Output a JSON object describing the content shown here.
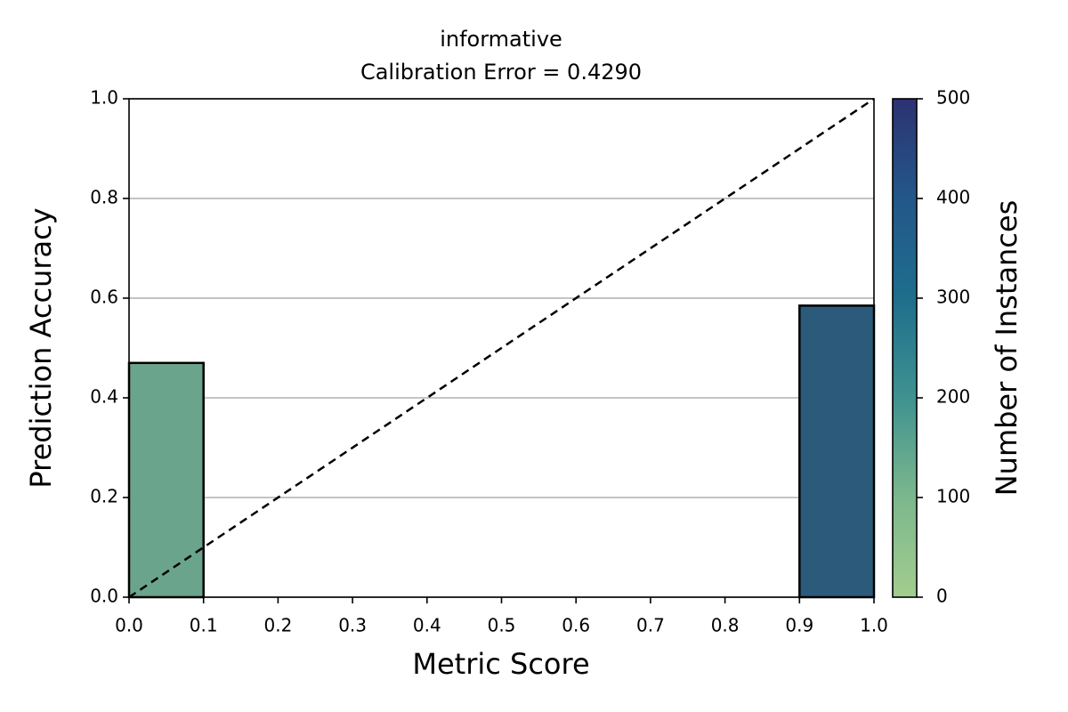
{
  "chart_data": {
    "type": "histogram",
    "title": "informative",
    "subtitle": "Calibration Error = 0.4290",
    "x_label": "Metric Score",
    "y_label": "Prediction Accuracy",
    "bins": [
      0,
      0.1,
      0.2,
      0.3,
      0.4,
      0.5,
      0.6,
      0.7,
      0.8,
      0.9,
      1.0
    ],
    "values": [
      0.47,
      null,
      null,
      null,
      null,
      null,
      null,
      null,
      null,
      0.585
    ],
    "colors": [
      "#6ba48c",
      null,
      null,
      null,
      null,
      null,
      null,
      null,
      null,
      "#2c5a7b"
    ],
    "edge_color": "#000000",
    "xlim": [
      0,
      1
    ],
    "ylim": [
      0,
      1
    ],
    "xticks": [
      {
        "value": 0,
        "label": "0.0"
      },
      {
        "value": 0.1,
        "label": "0.1"
      },
      {
        "value": 0.2,
        "label": "0.2"
      },
      {
        "value": 0.3,
        "label": "0.3"
      },
      {
        "value": 0.4,
        "label": "0.4"
      },
      {
        "value": 0.5,
        "label": "0.5"
      },
      {
        "value": 0.6,
        "label": "0.6"
      },
      {
        "value": 0.7,
        "label": "0.7"
      },
      {
        "value": 0.8,
        "label": "0.8"
      },
      {
        "value": 0.9,
        "label": "0.9"
      },
      {
        "value": 1,
        "label": "1.0"
      }
    ],
    "yticks": [
      {
        "value": 0,
        "label": "0.0"
      },
      {
        "value": 0.2,
        "label": "0.2"
      },
      {
        "value": 0.4,
        "label": "0.4"
      },
      {
        "value": 0.6,
        "label": "0.6"
      },
      {
        "value": 0.8,
        "label": "0.8"
      },
      {
        "value": 1,
        "label": "1.0"
      }
    ],
    "grid": "y",
    "grid_color": "#b0b0b0",
    "diagonal": true,
    "colorbar": {
      "label": "Number of Instances",
      "lim": [
        0,
        500
      ],
      "ticks": [
        0,
        100,
        200,
        300,
        400,
        500
      ],
      "colors": [
        "#a2cd8e",
        "#7cb78d",
        "#3f9290",
        "#1e6e8c",
        "#23578a",
        "#2c3272"
      ]
    }
  }
}
